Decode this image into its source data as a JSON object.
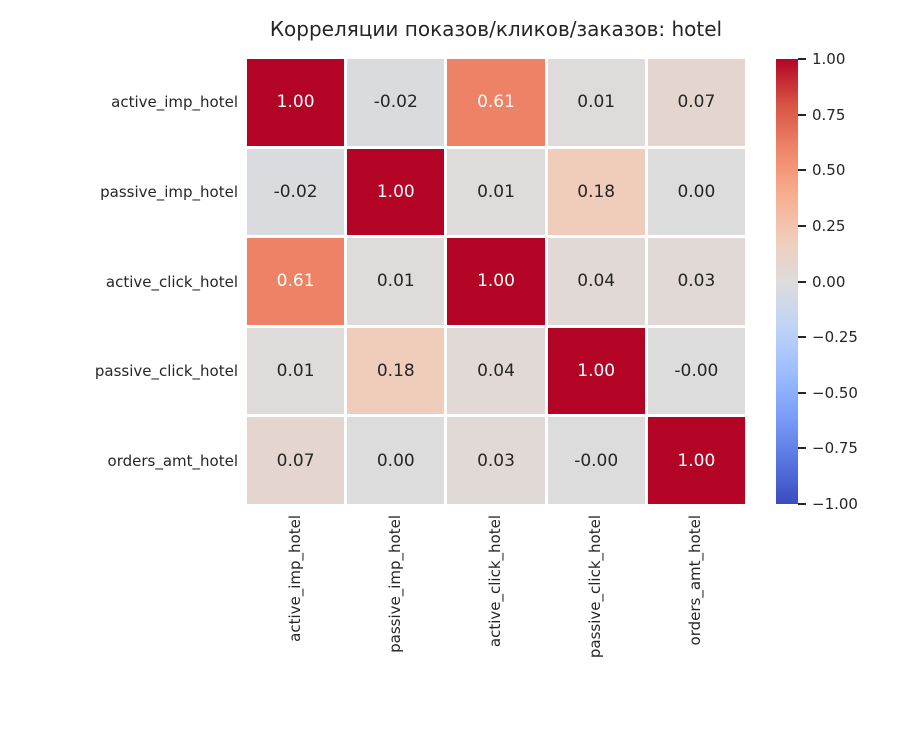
{
  "title": "Корреляции показов/кликов/заказов: hotel",
  "chart_data": {
    "type": "heatmap",
    "x_labels": [
      "active_imp_hotel",
      "passive_imp_hotel",
      "active_click_hotel",
      "passive_click_hotel",
      "orders_amt_hotel"
    ],
    "y_labels": [
      "active_imp_hotel",
      "passive_imp_hotel",
      "active_click_hotel",
      "passive_click_hotel",
      "orders_amt_hotel"
    ],
    "values": [
      [
        1.0,
        -0.02,
        0.61,
        0.01,
        0.07
      ],
      [
        -0.02,
        1.0,
        0.01,
        0.18,
        0.0
      ],
      [
        0.61,
        0.01,
        1.0,
        0.04,
        0.03
      ],
      [
        0.01,
        0.18,
        0.04,
        1.0,
        -0.0
      ],
      [
        0.07,
        0.0,
        0.03,
        -0.0,
        1.0
      ]
    ],
    "cell_labels": [
      [
        "1.00",
        "-0.02",
        "0.61",
        "0.01",
        "0.07"
      ],
      [
        "-0.02",
        "1.00",
        "0.01",
        "0.18",
        "0.00"
      ],
      [
        "0.61",
        "0.01",
        "1.00",
        "0.04",
        "0.03"
      ],
      [
        "0.01",
        "0.18",
        "0.04",
        "1.00",
        "-0.00"
      ],
      [
        "0.07",
        "0.00",
        "0.03",
        "-0.00",
        "1.00"
      ]
    ],
    "vmin": -1.0,
    "vmax": 1.0,
    "colormap": {
      "name": "coolwarm",
      "stops": [
        "#3b4cc0",
        "#5977e3",
        "#7b9ff9",
        "#9ebeff",
        "#c0d4f5",
        "#dddcdc",
        "#f2cbb7",
        "#f7ac8e",
        "#ee8468",
        "#d65244",
        "#b40426"
      ]
    },
    "colorbar_ticks": [
      "1.00",
      "0.75",
      "0.50",
      "0.25",
      "0.00",
      "−0.25",
      "−0.50",
      "−0.75",
      "−1.00"
    ],
    "legend_position": "right",
    "grid": false
  },
  "colors": {
    "background": "#ffffff",
    "cell_gap": "#ffffff",
    "annotation_dark": "#262626",
    "annotation_light": "#ffffff",
    "tick_label": "#262626",
    "title_text": "#262626"
  }
}
